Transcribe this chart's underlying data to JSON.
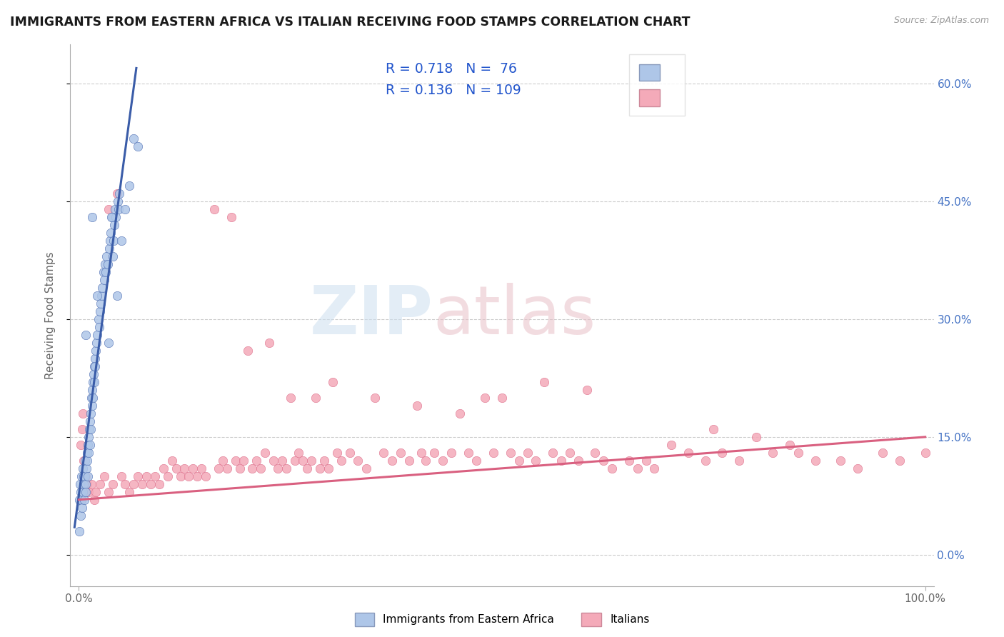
{
  "title": "IMMIGRANTS FROM EASTERN AFRICA VS ITALIAN RECEIVING FOOD STAMPS CORRELATION CHART",
  "source": "Source: ZipAtlas.com",
  "ylabel": "Receiving Food Stamps",
  "yticks_labels": [
    "0.0%",
    "15.0%",
    "30.0%",
    "45.0%",
    "60.0%"
  ],
  "ytick_vals": [
    0,
    15,
    30,
    45,
    60
  ],
  "xlim": [
    -1,
    101
  ],
  "ylim": [
    -4,
    65
  ],
  "label1": "Immigrants from Eastern Africa",
  "label2": "Italians",
  "color1": "#aec6e8",
  "color2": "#f4aab9",
  "line_color1": "#3a5ca8",
  "line_color2": "#d96080",
  "watermark_zip": "ZIP",
  "watermark_atlas": "atlas",
  "title_color": "#1a1a1a",
  "title_fontsize": 12.5,
  "blue_scatter": [
    [
      0.1,
      7
    ],
    [
      0.15,
      9
    ],
    [
      0.2,
      5
    ],
    [
      0.25,
      8
    ],
    [
      0.3,
      10
    ],
    [
      0.35,
      7
    ],
    [
      0.4,
      6
    ],
    [
      0.45,
      8
    ],
    [
      0.5,
      11
    ],
    [
      0.55,
      9
    ],
    [
      0.6,
      10
    ],
    [
      0.65,
      7
    ],
    [
      0.7,
      12
    ],
    [
      0.75,
      10
    ],
    [
      0.8,
      9
    ],
    [
      0.85,
      8
    ],
    [
      0.9,
      11
    ],
    [
      0.95,
      13
    ],
    [
      1.0,
      12
    ],
    [
      1.05,
      10
    ],
    [
      1.1,
      14
    ],
    [
      1.15,
      13
    ],
    [
      1.2,
      15
    ],
    [
      1.25,
      16
    ],
    [
      1.3,
      14
    ],
    [
      1.35,
      17
    ],
    [
      1.4,
      16
    ],
    [
      1.45,
      18
    ],
    [
      1.5,
      20
    ],
    [
      1.55,
      19
    ],
    [
      1.6,
      21
    ],
    [
      1.65,
      20
    ],
    [
      1.7,
      22
    ],
    [
      1.75,
      23
    ],
    [
      1.8,
      24
    ],
    [
      1.85,
      22
    ],
    [
      1.9,
      25
    ],
    [
      1.95,
      24
    ],
    [
      2.0,
      26
    ],
    [
      2.1,
      27
    ],
    [
      2.2,
      28
    ],
    [
      2.3,
      30
    ],
    [
      2.4,
      29
    ],
    [
      2.5,
      31
    ],
    [
      2.6,
      32
    ],
    [
      2.7,
      33
    ],
    [
      2.8,
      34
    ],
    [
      2.9,
      36
    ],
    [
      3.0,
      35
    ],
    [
      3.1,
      37
    ],
    [
      3.2,
      36
    ],
    [
      3.3,
      38
    ],
    [
      3.4,
      37
    ],
    [
      3.5,
      27
    ],
    [
      3.6,
      39
    ],
    [
      3.7,
      40
    ],
    [
      3.8,
      41
    ],
    [
      3.9,
      43
    ],
    [
      4.0,
      38
    ],
    [
      4.1,
      40
    ],
    [
      4.2,
      42
    ],
    [
      4.3,
      44
    ],
    [
      4.4,
      43
    ],
    [
      4.5,
      33
    ],
    [
      4.6,
      45
    ],
    [
      4.7,
      44
    ],
    [
      4.8,
      46
    ],
    [
      5.0,
      40
    ],
    [
      5.5,
      44
    ],
    [
      6.0,
      47
    ],
    [
      6.5,
      53
    ],
    [
      7.0,
      52
    ],
    [
      1.55,
      43
    ],
    [
      0.85,
      28
    ],
    [
      2.15,
      33
    ],
    [
      3.85,
      43
    ],
    [
      0.1,
      3
    ]
  ],
  "pink_scatter": [
    [
      0.2,
      14
    ],
    [
      0.4,
      16
    ],
    [
      0.5,
      18
    ],
    [
      0.6,
      12
    ],
    [
      0.8,
      10
    ],
    [
      1.0,
      9
    ],
    [
      1.2,
      8
    ],
    [
      1.5,
      9
    ],
    [
      1.8,
      7
    ],
    [
      2.0,
      8
    ],
    [
      2.5,
      9
    ],
    [
      3.0,
      10
    ],
    [
      3.5,
      8
    ],
    [
      4.0,
      9
    ],
    [
      4.5,
      46
    ],
    [
      5.0,
      10
    ],
    [
      5.5,
      9
    ],
    [
      6.0,
      8
    ],
    [
      6.5,
      9
    ],
    [
      7.0,
      10
    ],
    [
      7.5,
      9
    ],
    [
      8.0,
      10
    ],
    [
      8.5,
      9
    ],
    [
      9.0,
      10
    ],
    [
      9.5,
      9
    ],
    [
      10.0,
      11
    ],
    [
      10.5,
      10
    ],
    [
      11.0,
      12
    ],
    [
      11.5,
      11
    ],
    [
      12.0,
      10
    ],
    [
      12.5,
      11
    ],
    [
      13.0,
      10
    ],
    [
      13.5,
      11
    ],
    [
      14.0,
      10
    ],
    [
      14.5,
      11
    ],
    [
      15.0,
      10
    ],
    [
      16.0,
      44
    ],
    [
      16.5,
      11
    ],
    [
      17.0,
      12
    ],
    [
      17.5,
      11
    ],
    [
      18.0,
      43
    ],
    [
      18.5,
      12
    ],
    [
      19.0,
      11
    ],
    [
      19.5,
      12
    ],
    [
      20.0,
      26
    ],
    [
      20.5,
      11
    ],
    [
      21.0,
      12
    ],
    [
      21.5,
      11
    ],
    [
      22.0,
      13
    ],
    [
      22.5,
      27
    ],
    [
      23.0,
      12
    ],
    [
      23.5,
      11
    ],
    [
      24.0,
      12
    ],
    [
      24.5,
      11
    ],
    [
      25.0,
      20
    ],
    [
      25.5,
      12
    ],
    [
      26.0,
      13
    ],
    [
      26.5,
      12
    ],
    [
      27.0,
      11
    ],
    [
      27.5,
      12
    ],
    [
      28.0,
      20
    ],
    [
      28.5,
      11
    ],
    [
      29.0,
      12
    ],
    [
      29.5,
      11
    ],
    [
      30.0,
      22
    ],
    [
      30.5,
      13
    ],
    [
      31.0,
      12
    ],
    [
      32.0,
      13
    ],
    [
      33.0,
      12
    ],
    [
      34.0,
      11
    ],
    [
      35.0,
      20
    ],
    [
      36.0,
      13
    ],
    [
      37.0,
      12
    ],
    [
      38.0,
      13
    ],
    [
      39.0,
      12
    ],
    [
      40.0,
      19
    ],
    [
      40.5,
      13
    ],
    [
      41.0,
      12
    ],
    [
      42.0,
      13
    ],
    [
      43.0,
      12
    ],
    [
      44.0,
      13
    ],
    [
      45.0,
      18
    ],
    [
      46.0,
      13
    ],
    [
      47.0,
      12
    ],
    [
      48.0,
      20
    ],
    [
      49.0,
      13
    ],
    [
      50.0,
      20
    ],
    [
      51.0,
      13
    ],
    [
      52.0,
      12
    ],
    [
      53.0,
      13
    ],
    [
      54.0,
      12
    ],
    [
      55.0,
      22
    ],
    [
      56.0,
      13
    ],
    [
      57.0,
      12
    ],
    [
      58.0,
      13
    ],
    [
      59.0,
      12
    ],
    [
      60.0,
      21
    ],
    [
      61.0,
      13
    ],
    [
      62.0,
      12
    ],
    [
      63.0,
      11
    ],
    [
      65.0,
      12
    ],
    [
      66.0,
      11
    ],
    [
      67.0,
      12
    ],
    [
      68.0,
      11
    ],
    [
      70.0,
      14
    ],
    [
      72.0,
      13
    ],
    [
      74.0,
      12
    ],
    [
      75.0,
      16
    ],
    [
      76.0,
      13
    ],
    [
      78.0,
      12
    ],
    [
      80.0,
      15
    ],
    [
      82.0,
      13
    ],
    [
      84.0,
      14
    ],
    [
      85.0,
      13
    ],
    [
      87.0,
      12
    ],
    [
      90.0,
      12
    ],
    [
      92.0,
      11
    ],
    [
      95.0,
      13
    ],
    [
      97.0,
      12
    ],
    [
      100.0,
      13
    ],
    [
      3.5,
      44
    ],
    [
      0.3,
      7
    ],
    [
      0.7,
      8
    ]
  ],
  "blue_line_x": [
    -0.5,
    6.8
  ],
  "blue_line_y": [
    3.5,
    62
  ],
  "pink_line_x": [
    0,
    100
  ],
  "pink_line_y": [
    7,
    15
  ]
}
